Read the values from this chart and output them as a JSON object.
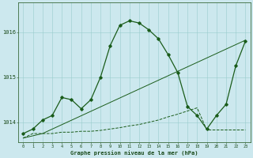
{
  "title": "Graphe pression niveau de la mer (hPa)",
  "xticks": [
    0,
    1,
    2,
    3,
    4,
    5,
    6,
    7,
    8,
    9,
    10,
    11,
    12,
    13,
    14,
    15,
    16,
    17,
    18,
    19,
    20,
    21,
    22,
    23
  ],
  "ylim": [
    1013.55,
    1016.65
  ],
  "yticks": [
    1014,
    1015,
    1016
  ],
  "bg_color": "#cce8ee",
  "grid_color": "#99cccc",
  "line_color": "#1a5c1a",
  "series1_x": [
    0,
    1,
    2,
    3,
    4,
    5,
    6,
    7,
    8,
    9,
    10,
    11,
    12,
    13,
    14,
    15,
    16,
    17,
    18,
    19,
    20,
    21,
    22,
    23
  ],
  "series1_y": [
    1013.75,
    1013.85,
    1014.05,
    1014.15,
    1014.55,
    1014.5,
    1014.3,
    1014.5,
    1015.0,
    1015.7,
    1016.15,
    1016.25,
    1016.2,
    1016.05,
    1015.85,
    1015.5,
    1015.1,
    1014.35,
    1014.15,
    1013.85,
    1014.15,
    1014.4,
    1015.25,
    1015.8
  ],
  "series2_x": [
    0,
    1,
    2,
    3,
    4,
    5,
    6,
    7,
    8,
    9,
    10,
    11,
    12,
    13,
    14,
    15,
    16,
    17,
    18,
    19,
    20,
    21,
    22,
    23
  ],
  "series2_y": [
    1013.65,
    1013.75,
    1013.75,
    1013.75,
    1013.78,
    1013.78,
    1013.8,
    1013.8,
    1013.82,
    1013.85,
    1013.88,
    1013.92,
    1013.95,
    1014.0,
    1014.05,
    1014.12,
    1014.18,
    1014.25,
    1014.32,
    1013.83,
    1013.83,
    1013.83,
    1013.83,
    1013.83
  ],
  "series3_x": [
    0,
    2,
    23
  ],
  "series3_y": [
    1013.65,
    1013.75,
    1015.82
  ]
}
